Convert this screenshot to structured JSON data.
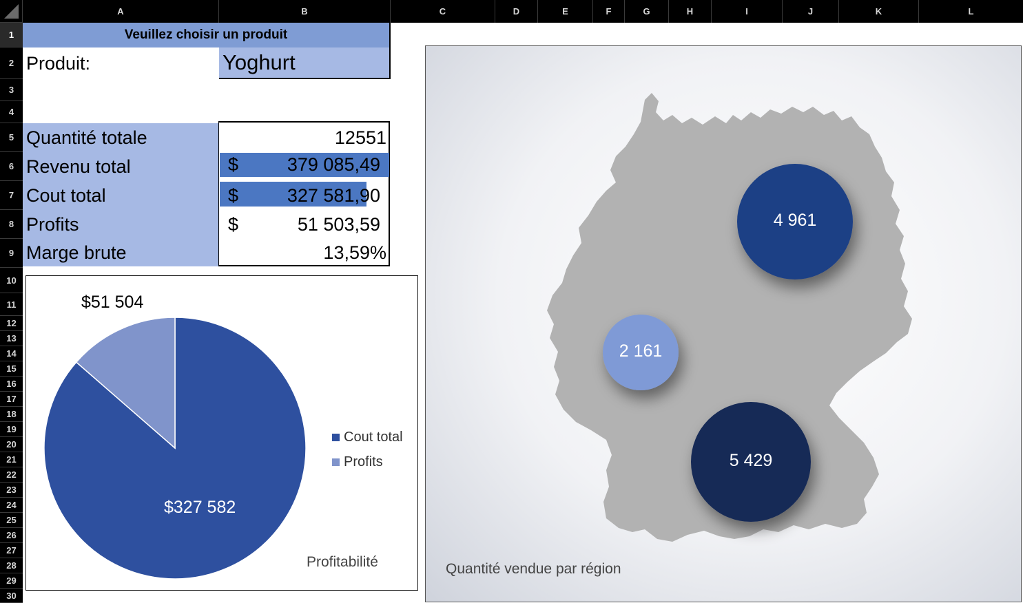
{
  "columns": [
    "A",
    "B",
    "C",
    "D",
    "E",
    "F",
    "G",
    "H",
    "I",
    "J",
    "K",
    "L"
  ],
  "rows": [
    "1",
    "2",
    "3",
    "4",
    "5",
    "6",
    "7",
    "8",
    "9",
    "10",
    "11",
    "12",
    "13",
    "14",
    "15",
    "16",
    "17",
    "18",
    "19",
    "20",
    "21",
    "22",
    "23",
    "24",
    "25",
    "26",
    "27",
    "28",
    "29",
    "30"
  ],
  "header": {
    "title": "Veuillez choisir un produit"
  },
  "product": {
    "label": "Produit:",
    "value": "Yoghurt"
  },
  "summary": [
    {
      "label": "Quantité totale",
      "currency": "",
      "value": "12551"
    },
    {
      "label": "Revenu total",
      "currency": "$",
      "value": "379 085,49"
    },
    {
      "label": "Cout total",
      "currency": "$",
      "value": "327 581,90"
    },
    {
      "label": "Profits",
      "currency": "$",
      "value": "51 503,59"
    },
    {
      "label": "Marge brute",
      "currency": "",
      "value": "13,59%"
    }
  ],
  "colors": {
    "header_fill": "#7f9cd4",
    "light_fill": "#a6b9e4",
    "dark_fill": "#4b77c2",
    "pie_dark": "#2e509f",
    "pie_light": "#8094cb",
    "map_grey": "#b2b2b2",
    "bubble_dark": "#1f3f85",
    "bubble_light": "#7f9ad6",
    "bubble_navy": "#182a57"
  },
  "chart_data": [
    {
      "type": "pie",
      "title": "Profitabilité",
      "categories": [
        "Cout total",
        "Profits"
      ],
      "values": [
        327581.9,
        51503.59
      ],
      "data_labels": [
        "$327 582",
        "$51 504"
      ],
      "legend": [
        "Cout total",
        "Profits"
      ],
      "legend_position": "right"
    },
    {
      "type": "map-bubble",
      "title": "Quantité vendue par région",
      "values": [
        4961,
        2161,
        5429
      ],
      "data_labels": [
        "4 961",
        "2 161",
        "5 429"
      ],
      "regions": [
        "north-east",
        "west",
        "south"
      ]
    }
  ]
}
